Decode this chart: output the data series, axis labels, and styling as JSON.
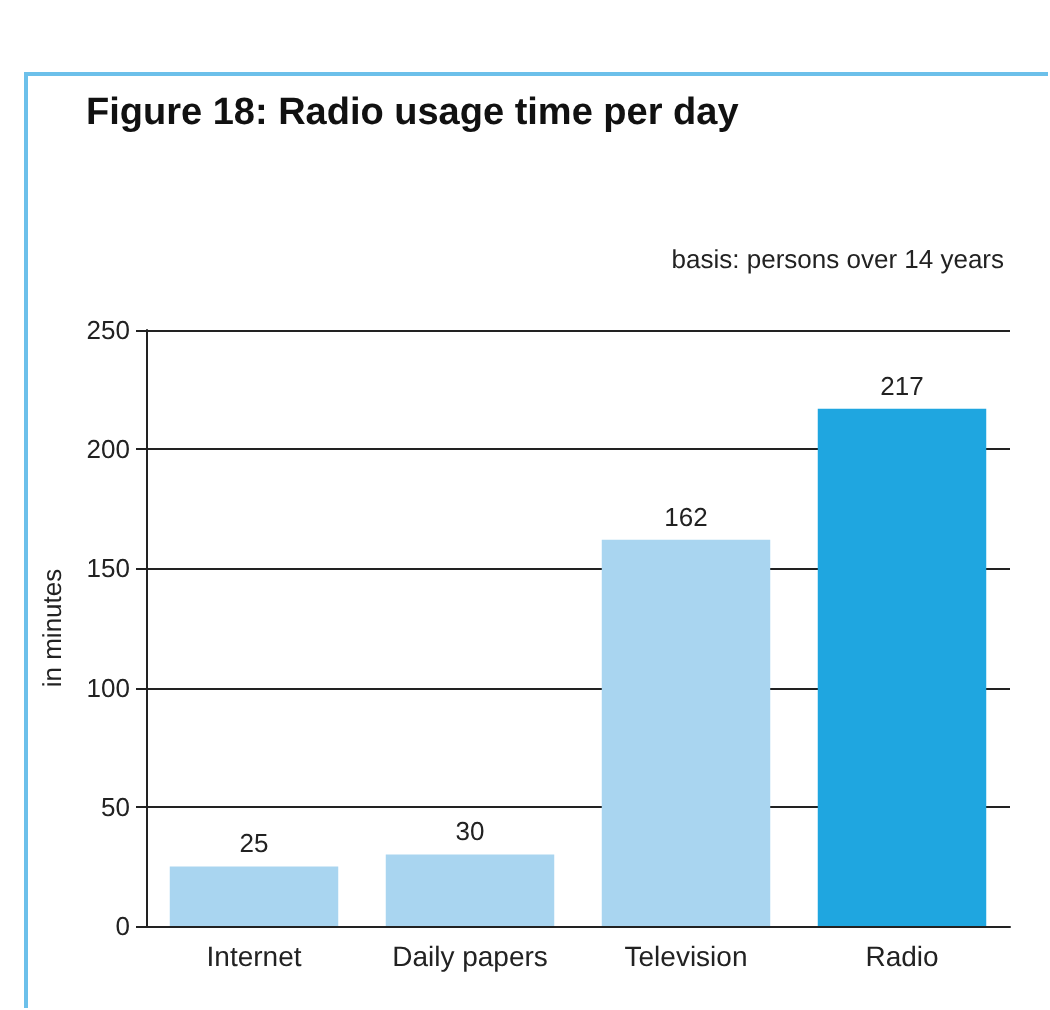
{
  "chart_data": {
    "type": "bar",
    "title": "Figure 18: Radio usage time per day",
    "annotations": [
      "basis: persons over 14 years"
    ],
    "ylabel": "in minutes",
    "categories": [
      "Internet",
      "Daily papers",
      "Television",
      "Radio"
    ],
    "values": [
      25,
      30,
      162,
      217
    ],
    "colors": [
      "#a9d5f0",
      "#a9d5f0",
      "#a9d5f0",
      "#1fa6e0"
    ],
    "ylim": [
      0,
      250
    ],
    "yticks": [
      0,
      50,
      100,
      150,
      200,
      250
    ],
    "grid": "y",
    "data_labels": true
  }
}
